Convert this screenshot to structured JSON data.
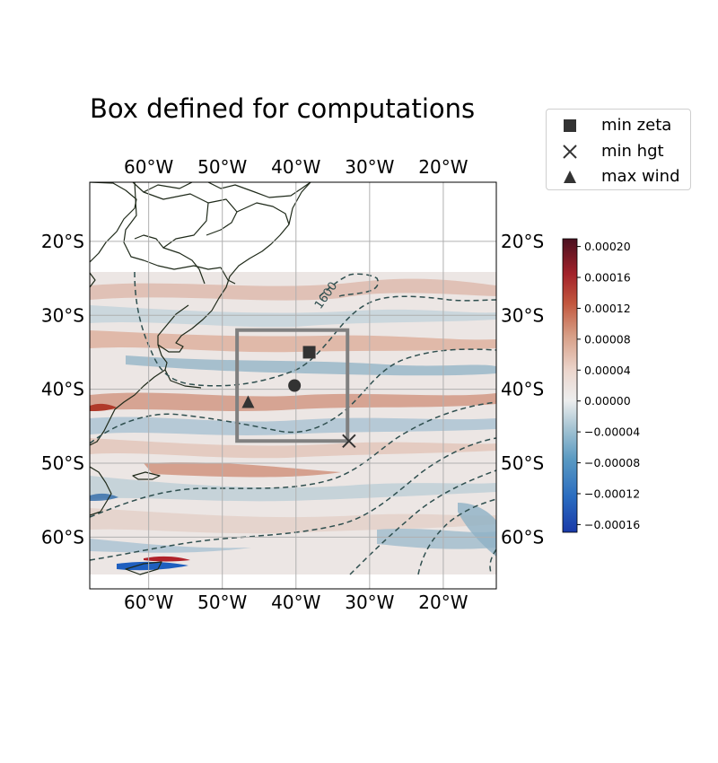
{
  "title": "Box defined for computations",
  "chart_data": {
    "type": "map",
    "title": "Box defined for computations",
    "projection": "PlateCarree",
    "extent": {
      "lon": [
        -68,
        -12.8
      ],
      "lat": [
        -67,
        -12
      ]
    },
    "field_extent": {
      "lon": [
        -68,
        -12.8
      ],
      "lat": [
        -65,
        -24
      ]
    },
    "lon_ticks": [
      {
        "value": -60,
        "label": "60°W"
      },
      {
        "value": -50,
        "label": "50°W"
      },
      {
        "value": -40,
        "label": "40°W"
      },
      {
        "value": -30,
        "label": "30°W"
      },
      {
        "value": -20,
        "label": "20°W"
      }
    ],
    "lat_ticks": [
      {
        "value": -20,
        "label": "20°S"
      },
      {
        "value": -30,
        "label": "30°S"
      },
      {
        "value": -40,
        "label": "40°S"
      },
      {
        "value": -50,
        "label": "50°S"
      },
      {
        "value": -60,
        "label": "60°S"
      }
    ],
    "grid": true,
    "box": {
      "lon": [
        -48,
        -33
      ],
      "lat": [
        -47,
        -32
      ]
    },
    "markers": [
      {
        "name": "min zeta",
        "symbol": "square",
        "lon": -38.2,
        "lat": -35
      },
      {
        "name": "min hgt",
        "symbol": "x",
        "lon": -32.8,
        "lat": -47
      },
      {
        "name": "max wind",
        "symbol": "triangle",
        "lon": -46.5,
        "lat": -41.8
      },
      {
        "name": "center",
        "symbol": "circle",
        "lon": -40.2,
        "lat": -39.5
      }
    ],
    "contour_label": "1600",
    "colorbar": {
      "range": [
        -0.00017,
        0.00021
      ],
      "ticks": [
        {
          "value": 0.0002,
          "label": "0.00020"
        },
        {
          "value": 0.00016,
          "label": "0.00016"
        },
        {
          "value": 0.00012,
          "label": "0.00012"
        },
        {
          "value": 8e-05,
          "label": "0.00008"
        },
        {
          "value": 4e-05,
          "label": "0.00004"
        },
        {
          "value": 0.0,
          "label": "0.00000"
        },
        {
          "value": -4e-05,
          "label": "−0.00004"
        },
        {
          "value": -8e-05,
          "label": "−0.00008"
        },
        {
          "value": -0.00012,
          "label": "−0.00012"
        },
        {
          "value": -0.00016,
          "label": "−0.00016"
        }
      ],
      "colormap": "balance"
    },
    "legend": {
      "placement": "top-right, outside",
      "entries": [
        {
          "label": "min zeta",
          "symbol": "square"
        },
        {
          "label": "min hgt",
          "symbol": "x"
        },
        {
          "label": "max wind",
          "symbol": "triangle"
        }
      ]
    },
    "colors": {
      "marker": "#333333",
      "box": "#808080",
      "contour": "#2f4f4f",
      "coast": "#1f2a1a",
      "grid": "#b0b0b0"
    }
  }
}
